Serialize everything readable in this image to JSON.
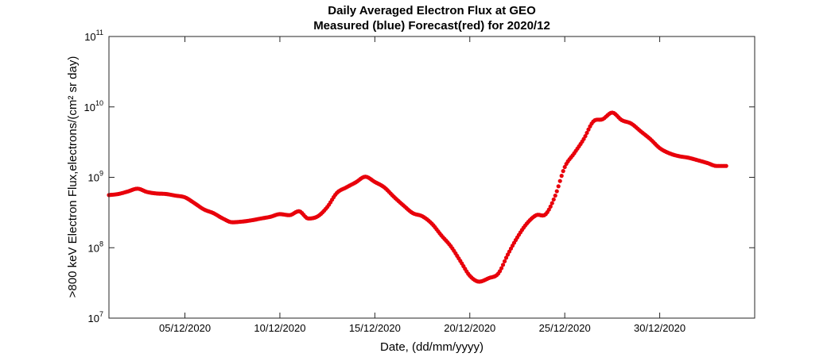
{
  "chart_data": {
    "type": "scatter",
    "title": "Daily Averaged Electron Flux at GEO",
    "subtitle": "Measured (blue) Forecast(red) for 2020/12",
    "xlabel": "Date, (dd/mm/yyyy)",
    "ylabel": ">800 keV Electron Flux,electrons/(cm² sr day)",
    "yscale": "log",
    "xlim": [
      "2020-12-01",
      "2021-01-04"
    ],
    "ylim": [
      10000000.0,
      100000000000.0
    ],
    "grid": false,
    "x_ticks": [
      "05/12/2020",
      "10/12/2020",
      "15/12/2020",
      "20/12/2020",
      "25/12/2020",
      "30/12/2020"
    ],
    "y_ticks": [
      {
        "base": "10",
        "exp": "7"
      },
      {
        "base": "10",
        "exp": "8"
      },
      {
        "base": "10",
        "exp": "9"
      },
      {
        "base": "10",
        "exp": "10"
      },
      {
        "base": "10",
        "exp": "11"
      }
    ],
    "series": [
      {
        "color": "#e8000b",
        "points": [
          [
            "2020-12-01 00:00",
            560000000.0
          ],
          [
            "2020-12-01 12:00",
            580000000.0
          ],
          [
            "2020-12-02 00:00",
            630000000.0
          ],
          [
            "2020-12-02 12:00",
            690000000.0
          ],
          [
            "2020-12-03 00:00",
            620000000.0
          ],
          [
            "2020-12-03 12:00",
            590000000.0
          ],
          [
            "2020-12-04 00:00",
            580000000.0
          ],
          [
            "2020-12-04 12:00",
            550000000.0
          ],
          [
            "2020-12-05 00:00",
            520000000.0
          ],
          [
            "2020-12-05 12:00",
            430000000.0
          ],
          [
            "2020-12-06 00:00",
            350000000.0
          ],
          [
            "2020-12-06 12:00",
            310000000.0
          ],
          [
            "2020-12-07 00:00",
            260000000.0
          ],
          [
            "2020-12-07 12:00",
            230000000.0
          ],
          [
            "2020-12-08 00:00",
            235000000.0
          ],
          [
            "2020-12-08 12:00",
            245000000.0
          ],
          [
            "2020-12-09 00:00",
            260000000.0
          ],
          [
            "2020-12-09 12:00",
            275000000.0
          ],
          [
            "2020-12-10 00:00",
            300000000.0
          ],
          [
            "2020-12-10 12:00",
            290000000.0
          ],
          [
            "2020-12-11 00:00",
            330000000.0
          ],
          [
            "2020-12-11 12:00",
            260000000.0
          ],
          [
            "2020-12-12 00:00",
            280000000.0
          ],
          [
            "2020-12-12 12:00",
            380000000.0
          ],
          [
            "2020-12-13 00:00",
            600000000.0
          ],
          [
            "2020-12-13 12:00",
            720000000.0
          ],
          [
            "2020-12-14 00:00",
            850000000.0
          ],
          [
            "2020-12-14 12:00",
            1020000000.0
          ],
          [
            "2020-12-15 00:00",
            860000000.0
          ],
          [
            "2020-12-15 12:00",
            720000000.0
          ],
          [
            "2020-12-16 00:00",
            530000000.0
          ],
          [
            "2020-12-16 12:00",
            400000000.0
          ],
          [
            "2020-12-17 00:00",
            310000000.0
          ],
          [
            "2020-12-17 12:00",
            280000000.0
          ],
          [
            "2020-12-18 00:00",
            220000000.0
          ],
          [
            "2020-12-18 12:00",
            150000000.0
          ],
          [
            "2020-12-19 00:00",
            105000000.0
          ],
          [
            "2020-12-19 12:00",
            65000000.0
          ],
          [
            "2020-12-20 00:00",
            40000000.0
          ],
          [
            "2020-12-20 12:00",
            33000000.0
          ],
          [
            "2020-12-21 00:00",
            37000000.0
          ],
          [
            "2020-12-21 12:00",
            43000000.0
          ],
          [
            "2020-12-22 00:00",
            80000000.0
          ],
          [
            "2020-12-22 12:00",
            140000000.0
          ],
          [
            "2020-12-23 00:00",
            220000000.0
          ],
          [
            "2020-12-23 12:00",
            290000000.0
          ],
          [
            "2020-12-24 00:00",
            300000000.0
          ],
          [
            "2020-12-24 12:00",
            550000000.0
          ],
          [
            "2020-12-25 00:00",
            1400000000.0
          ],
          [
            "2020-12-25 12:00",
            2200000000.0
          ],
          [
            "2020-12-26 00:00",
            3500000000.0
          ],
          [
            "2020-12-26 12:00",
            6200000000.0
          ],
          [
            "2020-12-27 00:00",
            6700000000.0
          ],
          [
            "2020-12-27 12:00",
            8300000000.0
          ],
          [
            "2020-12-28 00:00",
            6500000000.0
          ],
          [
            "2020-12-28 12:00",
            5800000000.0
          ],
          [
            "2020-12-29 00:00",
            4500000000.0
          ],
          [
            "2020-12-29 12:00",
            3500000000.0
          ],
          [
            "2020-12-30 00:00",
            2600000000.0
          ],
          [
            "2020-12-30 12:00",
            2200000000.0
          ],
          [
            "2020-12-31 00:00",
            2000000000.0
          ],
          [
            "2020-12-31 12:00",
            1900000000.0
          ],
          [
            "2021-01-01 00:00",
            1750000000.0
          ],
          [
            "2021-01-01 12:00",
            1600000000.0
          ],
          [
            "2021-01-02 00:00",
            1450000000.0
          ],
          [
            "2021-01-02 12:00",
            1450000000.0
          ]
        ]
      }
    ]
  }
}
